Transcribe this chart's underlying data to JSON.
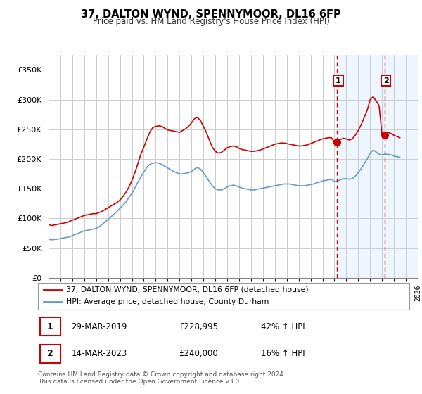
{
  "title": "37, DALTON WYND, SPENNYMOOR, DL16 6FP",
  "subtitle": "Price paid vs. HM Land Registry's House Price Index (HPI)",
  "legend_line1": "37, DALTON WYND, SPENNYMOOR, DL16 6FP (detached house)",
  "legend_line2": "HPI: Average price, detached house, County Durham",
  "sale1_date": "29-MAR-2019",
  "sale1_price": "£228,995",
  "sale1_hpi": "42% ↑ HPI",
  "sale2_date": "14-MAR-2023",
  "sale2_price": "£240,000",
  "sale2_hpi": "16% ↑ HPI",
  "footer": "Contains HM Land Registry data © Crown copyright and database right 2024.\nThis data is licensed under the Open Government Licence v3.0.",
  "red_color": "#cc0000",
  "blue_color": "#6699cc",
  "vline_color": "#cc0000",
  "shade_color": "#ddeeff",
  "background_color": "#ffffff",
  "grid_color": "#cccccc",
  "ylim": [
    0,
    375000
  ],
  "yticks": [
    0,
    50000,
    100000,
    150000,
    200000,
    250000,
    300000,
    350000
  ],
  "red_data": {
    "years": [
      1995.0,
      1995.25,
      1995.5,
      1995.75,
      1996.0,
      1996.25,
      1996.5,
      1996.75,
      1997.0,
      1997.25,
      1997.5,
      1997.75,
      1998.0,
      1998.25,
      1998.5,
      1998.75,
      1999.0,
      1999.25,
      1999.5,
      1999.75,
      2000.0,
      2000.25,
      2000.5,
      2000.75,
      2001.0,
      2001.25,
      2001.5,
      2001.75,
      2002.0,
      2002.25,
      2002.5,
      2002.75,
      2003.0,
      2003.25,
      2003.5,
      2003.75,
      2004.0,
      2004.25,
      2004.5,
      2004.75,
      2005.0,
      2005.25,
      2005.5,
      2005.75,
      2006.0,
      2006.25,
      2006.5,
      2006.75,
      2007.0,
      2007.25,
      2007.5,
      2007.75,
      2008.0,
      2008.25,
      2008.5,
      2008.75,
      2009.0,
      2009.25,
      2009.5,
      2009.75,
      2010.0,
      2010.25,
      2010.5,
      2010.75,
      2011.0,
      2011.25,
      2011.5,
      2011.75,
      2012.0,
      2012.25,
      2012.5,
      2012.75,
      2013.0,
      2013.25,
      2013.5,
      2013.75,
      2014.0,
      2014.25,
      2014.5,
      2014.75,
      2015.0,
      2015.25,
      2015.5,
      2015.75,
      2016.0,
      2016.25,
      2016.5,
      2016.75,
      2017.0,
      2017.25,
      2017.5,
      2017.75,
      2018.0,
      2018.25,
      2018.5,
      2018.75,
      2019.0,
      2019.25,
      2019.5,
      2019.75,
      2020.0,
      2020.25,
      2020.5,
      2020.75,
      2021.0,
      2021.25,
      2021.5,
      2021.75,
      2022.0,
      2022.25,
      2022.5,
      2022.75,
      2023.0,
      2023.25,
      2023.5,
      2023.75,
      2024.0,
      2024.25,
      2024.5
    ],
    "values": [
      90000,
      88000,
      89000,
      90000,
      91000,
      92000,
      93000,
      95000,
      97000,
      99000,
      101000,
      103000,
      105000,
      106000,
      107000,
      108000,
      108000,
      110000,
      112000,
      115000,
      118000,
      121000,
      124000,
      127000,
      131000,
      137000,
      144000,
      153000,
      164000,
      177000,
      192000,
      208000,
      220000,
      233000,
      245000,
      253000,
      255000,
      256000,
      255000,
      252000,
      249000,
      248000,
      247000,
      246000,
      245000,
      248000,
      251000,
      255000,
      261000,
      268000,
      270000,
      265000,
      255000,
      245000,
      232000,
      220000,
      213000,
      210000,
      211000,
      215000,
      219000,
      221000,
      222000,
      221000,
      218000,
      216000,
      215000,
      214000,
      213000,
      213000,
      214000,
      215000,
      217000,
      219000,
      221000,
      223000,
      225000,
      226000,
      227000,
      227000,
      226000,
      225000,
      224000,
      223000,
      222000,
      222000,
      223000,
      224000,
      226000,
      228000,
      230000,
      232000,
      234000,
      235000,
      236000,
      236000,
      229000,
      231000,
      233000,
      235000,
      234000,
      232000,
      234000,
      240000,
      248000,
      258000,
      270000,
      282000,
      300000,
      305000,
      298000,
      290000,
      240000,
      243000,
      245000,
      243000,
      240000,
      238000,
      236000
    ]
  },
  "blue_data": {
    "years": [
      1995.0,
      1995.25,
      1995.5,
      1995.75,
      1996.0,
      1996.25,
      1996.5,
      1996.75,
      1997.0,
      1997.25,
      1997.5,
      1997.75,
      1998.0,
      1998.25,
      1998.5,
      1998.75,
      1999.0,
      1999.25,
      1999.5,
      1999.75,
      2000.0,
      2000.25,
      2000.5,
      2000.75,
      2001.0,
      2001.25,
      2001.5,
      2001.75,
      2002.0,
      2002.25,
      2002.5,
      2002.75,
      2003.0,
      2003.25,
      2003.5,
      2003.75,
      2004.0,
      2004.25,
      2004.5,
      2004.75,
      2005.0,
      2005.25,
      2005.5,
      2005.75,
      2006.0,
      2006.25,
      2006.5,
      2006.75,
      2007.0,
      2007.25,
      2007.5,
      2007.75,
      2008.0,
      2008.25,
      2008.5,
      2008.75,
      2009.0,
      2009.25,
      2009.5,
      2009.75,
      2010.0,
      2010.25,
      2010.5,
      2010.75,
      2011.0,
      2011.25,
      2011.5,
      2011.75,
      2012.0,
      2012.25,
      2012.5,
      2012.75,
      2013.0,
      2013.25,
      2013.5,
      2013.75,
      2014.0,
      2014.25,
      2014.5,
      2014.75,
      2015.0,
      2015.25,
      2015.5,
      2015.75,
      2016.0,
      2016.25,
      2016.5,
      2016.75,
      2017.0,
      2017.25,
      2017.5,
      2017.75,
      2018.0,
      2018.25,
      2018.5,
      2018.75,
      2019.0,
      2019.25,
      2019.5,
      2019.75,
      2020.0,
      2020.25,
      2020.5,
      2020.75,
      2021.0,
      2021.25,
      2021.5,
      2021.75,
      2022.0,
      2022.25,
      2022.5,
      2022.75,
      2023.0,
      2023.25,
      2023.5,
      2023.75,
      2024.0,
      2024.25,
      2024.5
    ],
    "values": [
      65000,
      64000,
      64500,
      65000,
      66000,
      67000,
      68000,
      69000,
      71000,
      73000,
      75000,
      77000,
      79000,
      80000,
      81000,
      82000,
      83000,
      86000,
      90000,
      94000,
      98000,
      103000,
      107000,
      112000,
      117000,
      122000,
      128000,
      135000,
      142000,
      151000,
      161000,
      170000,
      178000,
      186000,
      191000,
      193000,
      194000,
      193000,
      191000,
      188000,
      185000,
      182000,
      179000,
      177000,
      175000,
      175000,
      176000,
      177000,
      179000,
      183000,
      186000,
      183000,
      177000,
      170000,
      162000,
      155000,
      150000,
      148000,
      148000,
      150000,
      153000,
      155000,
      156000,
      155000,
      153000,
      151000,
      150000,
      149000,
      148000,
      148000,
      149000,
      150000,
      151000,
      152000,
      153000,
      154000,
      155000,
      156000,
      157000,
      158000,
      158000,
      158000,
      157000,
      156000,
      155000,
      155000,
      155000,
      156000,
      157000,
      158000,
      160000,
      161000,
      163000,
      164000,
      165000,
      166000,
      162000,
      163000,
      165000,
      167000,
      167000,
      166000,
      167000,
      171000,
      177000,
      184000,
      192000,
      200000,
      210000,
      215000,
      212000,
      208000,
      207000,
      208000,
      208000,
      207000,
      205000,
      204000,
      203000
    ]
  },
  "sale1_year": 2019.22,
  "sale1_value": 228995,
  "sale2_year": 2023.22,
  "sale2_value": 240000,
  "shade_start": 2019.22,
  "shade_end": 2026,
  "xmin": 1995,
  "xmax": 2026
}
